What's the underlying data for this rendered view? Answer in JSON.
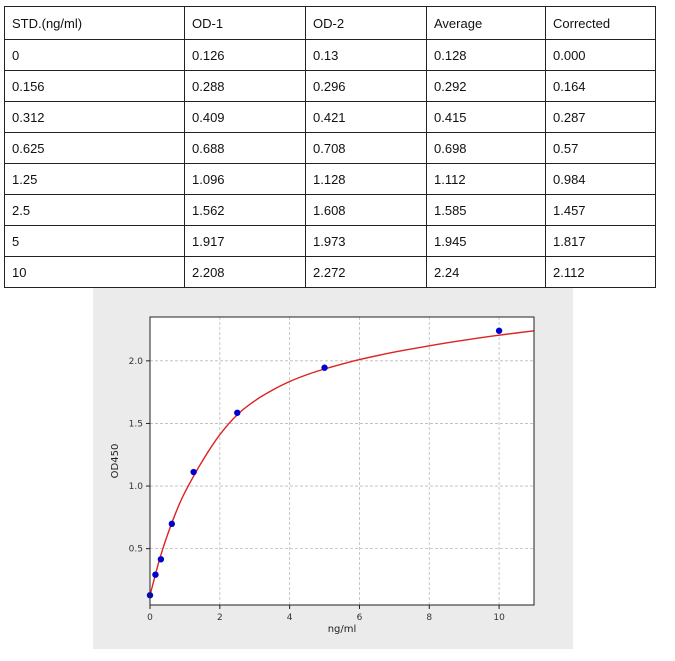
{
  "table": {
    "headers": [
      "STD.(ng/ml)",
      "OD-1",
      "OD-2",
      "Average",
      "Corrected"
    ],
    "rows": [
      [
        "0",
        "0.126",
        "0.13",
        "0.128",
        "0.000"
      ],
      [
        "0.156",
        "0.288",
        "0.296",
        "0.292",
        "0.164"
      ],
      [
        "0.312",
        "0.409",
        "0.421",
        "0.415",
        "0.287"
      ],
      [
        "0.625",
        "0.688",
        "0.708",
        "0.698",
        "0.57"
      ],
      [
        "1.25",
        "1.096",
        "1.128",
        "1.112",
        "0.984"
      ],
      [
        "2.5",
        "1.562",
        "1.608",
        "1.585",
        "1.457"
      ],
      [
        "5",
        "1.917",
        "1.973",
        "1.945",
        "1.817"
      ],
      [
        "10",
        "2.208",
        "2.272",
        "2.24",
        "2.112"
      ]
    ]
  },
  "chart_data": {
    "type": "scatter",
    "title": "",
    "xlabel": "ng/ml",
    "ylabel": "OD450",
    "xlim": [
      0,
      11
    ],
    "ylim": [
      0.05,
      2.35
    ],
    "xticks": [
      "0",
      "2",
      "4",
      "6",
      "8",
      "10"
    ],
    "yticks": [
      "0.5",
      "1.0",
      "1.5",
      "2.0"
    ],
    "grid": true,
    "series": [
      {
        "x": [
          0,
          0.156,
          0.312,
          0.625,
          1.25,
          2.5,
          5,
          10
        ],
        "y": [
          0.128,
          0.292,
          0.415,
          0.698,
          1.112,
          1.585,
          1.945,
          2.24
        ],
        "color": "#0000cc"
      }
    ],
    "fit_curve": {
      "x": [
        0,
        0.25,
        0.5,
        0.75,
        1,
        1.5,
        2,
        2.5,
        3,
        3.5,
        4,
        4.5,
        5,
        6,
        7,
        8,
        9,
        10,
        11
      ],
      "y": [
        0.128,
        0.39,
        0.61,
        0.795,
        0.95,
        1.2,
        1.41,
        1.57,
        1.68,
        1.765,
        1.835,
        1.89,
        1.935,
        2.01,
        2.07,
        2.12,
        2.165,
        2.205,
        2.24
      ],
      "color": "#dd2222"
    }
  }
}
